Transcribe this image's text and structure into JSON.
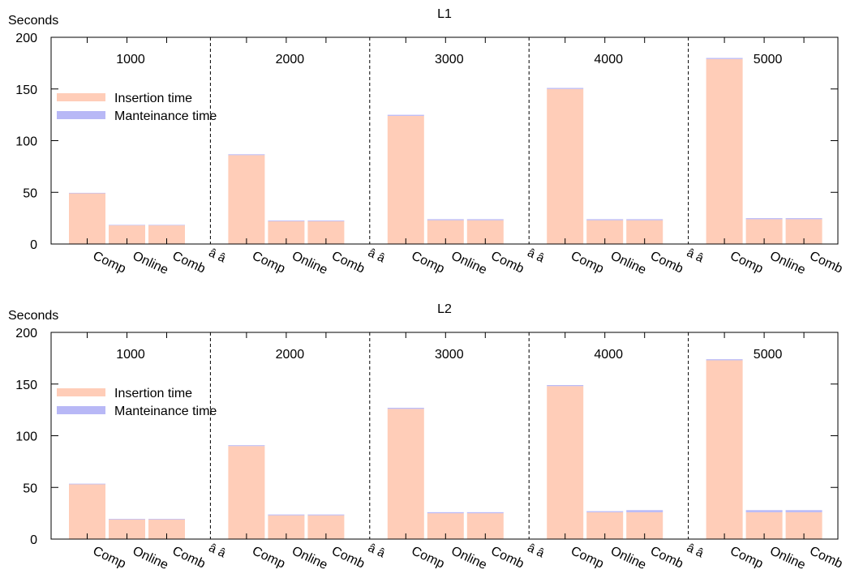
{
  "chart_data": [
    {
      "type": "bar",
      "title": "L1",
      "ylabel": "Seconds",
      "ylim": [
        0,
        200
      ],
      "yticks": [
        "0",
        "50",
        "100",
        "150",
        "200"
      ],
      "groups": [
        "1000",
        "2000",
        "3000",
        "4000",
        "5000"
      ],
      "categories": [
        "Comp",
        "Online",
        "Comb"
      ],
      "separator_label": "â â",
      "legend_position": "top-left",
      "grid": false,
      "series": [
        {
          "name": "Insertion time",
          "color": "#ffcdb8",
          "values": [
            [
              49,
              18,
              18
            ],
            [
              86,
              22,
              22
            ],
            [
              124,
              23,
              23
            ],
            [
              150,
              23,
              23
            ],
            [
              179,
              24,
              24
            ]
          ]
        },
        {
          "name": "Manteinance time",
          "color": "#b8b8f6",
          "values": [
            [
              0.5,
              0.5,
              0.5
            ],
            [
              0.8,
              0.7,
              0.7
            ],
            [
              1,
              1,
              1
            ],
            [
              1,
              1,
              1
            ],
            [
              1,
              1,
              1
            ]
          ]
        }
      ]
    },
    {
      "type": "bar",
      "title": "L2",
      "ylabel": "Seconds",
      "ylim": [
        0,
        200
      ],
      "yticks": [
        "0",
        "50",
        "100",
        "150",
        "200"
      ],
      "groups": [
        "1000",
        "2000",
        "3000",
        "4000",
        "5000"
      ],
      "categories": [
        "Comp",
        "Online",
        "Comb"
      ],
      "separator_label": "â â",
      "legend_position": "top-left",
      "grid": false,
      "series": [
        {
          "name": "Insertion time",
          "color": "#ffcdb8",
          "values": [
            [
              53,
              19,
              19
            ],
            [
              90,
              23,
              23
            ],
            [
              126,
              25,
              25
            ],
            [
              148,
              26,
              26
            ],
            [
              173,
              26,
              26
            ]
          ]
        },
        {
          "name": "Manteinance time",
          "color": "#b8b8f6",
          "values": [
            [
              0.6,
              0.6,
              0.6
            ],
            [
              0.8,
              0.8,
              0.8
            ],
            [
              1,
              1,
              1
            ],
            [
              1,
              1,
              2
            ],
            [
              1,
              2,
              2
            ]
          ]
        }
      ]
    }
  ]
}
